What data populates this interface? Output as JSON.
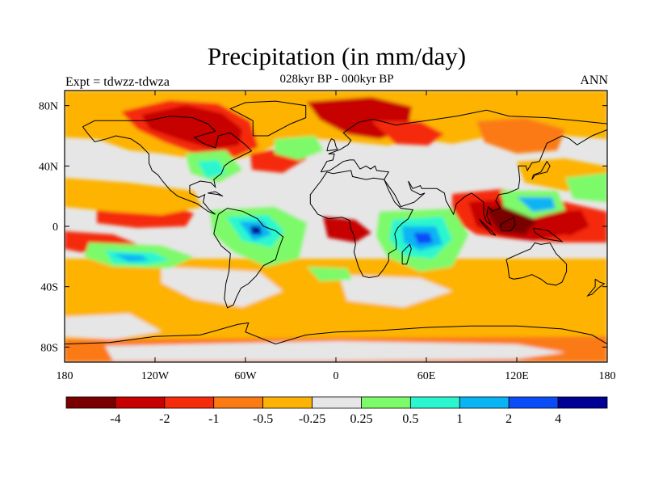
{
  "title": "Precipitation (in mm/day)",
  "subtitle": "028kyr BP - 000kyr BP",
  "left_label": "Expt = tdwzz-tdwza",
  "right_label": "ANN",
  "colors": {
    "n5": "#7a0000",
    "n4": "#c70000",
    "n3": "#f52b0b",
    "n2": "#fb7a12",
    "n1": "#fdb306",
    "zero": "#e6e6e6",
    "p1": "#7dfa69",
    "p2": "#2af7cf",
    "p3": "#08b4f4",
    "p4": "#0a4cf8",
    "p5": "#000096",
    "coast": "#000000"
  },
  "map": {
    "lon_ticks": [
      {
        "lon": -180,
        "label": "180"
      },
      {
        "lon": -120,
        "label": "120W"
      },
      {
        "lon": -60,
        "label": "60W"
      },
      {
        "lon": 0,
        "label": "0"
      },
      {
        "lon": 60,
        "label": "60E"
      },
      {
        "lon": 120,
        "label": "120E"
      },
      {
        "lon": 180,
        "label": "180"
      }
    ],
    "lat_ticks": [
      {
        "lat": 80,
        "label": "80N"
      },
      {
        "lat": 40,
        "label": "40N"
      },
      {
        "lat": 0,
        "label": "0"
      },
      {
        "lat": -40,
        "label": "40S"
      },
      {
        "lat": -80,
        "label": "80S"
      }
    ]
  },
  "colorbar": {
    "boxes": [
      "n5",
      "n4",
      "n3",
      "n2",
      "n1",
      "zero",
      "p1",
      "p2",
      "p3",
      "p4",
      "p5"
    ],
    "labels": [
      "-4",
      "-2",
      "-1",
      "-0.5",
      "-0.25",
      "0.25",
      "0.5",
      "1",
      "2",
      "4"
    ]
  }
}
